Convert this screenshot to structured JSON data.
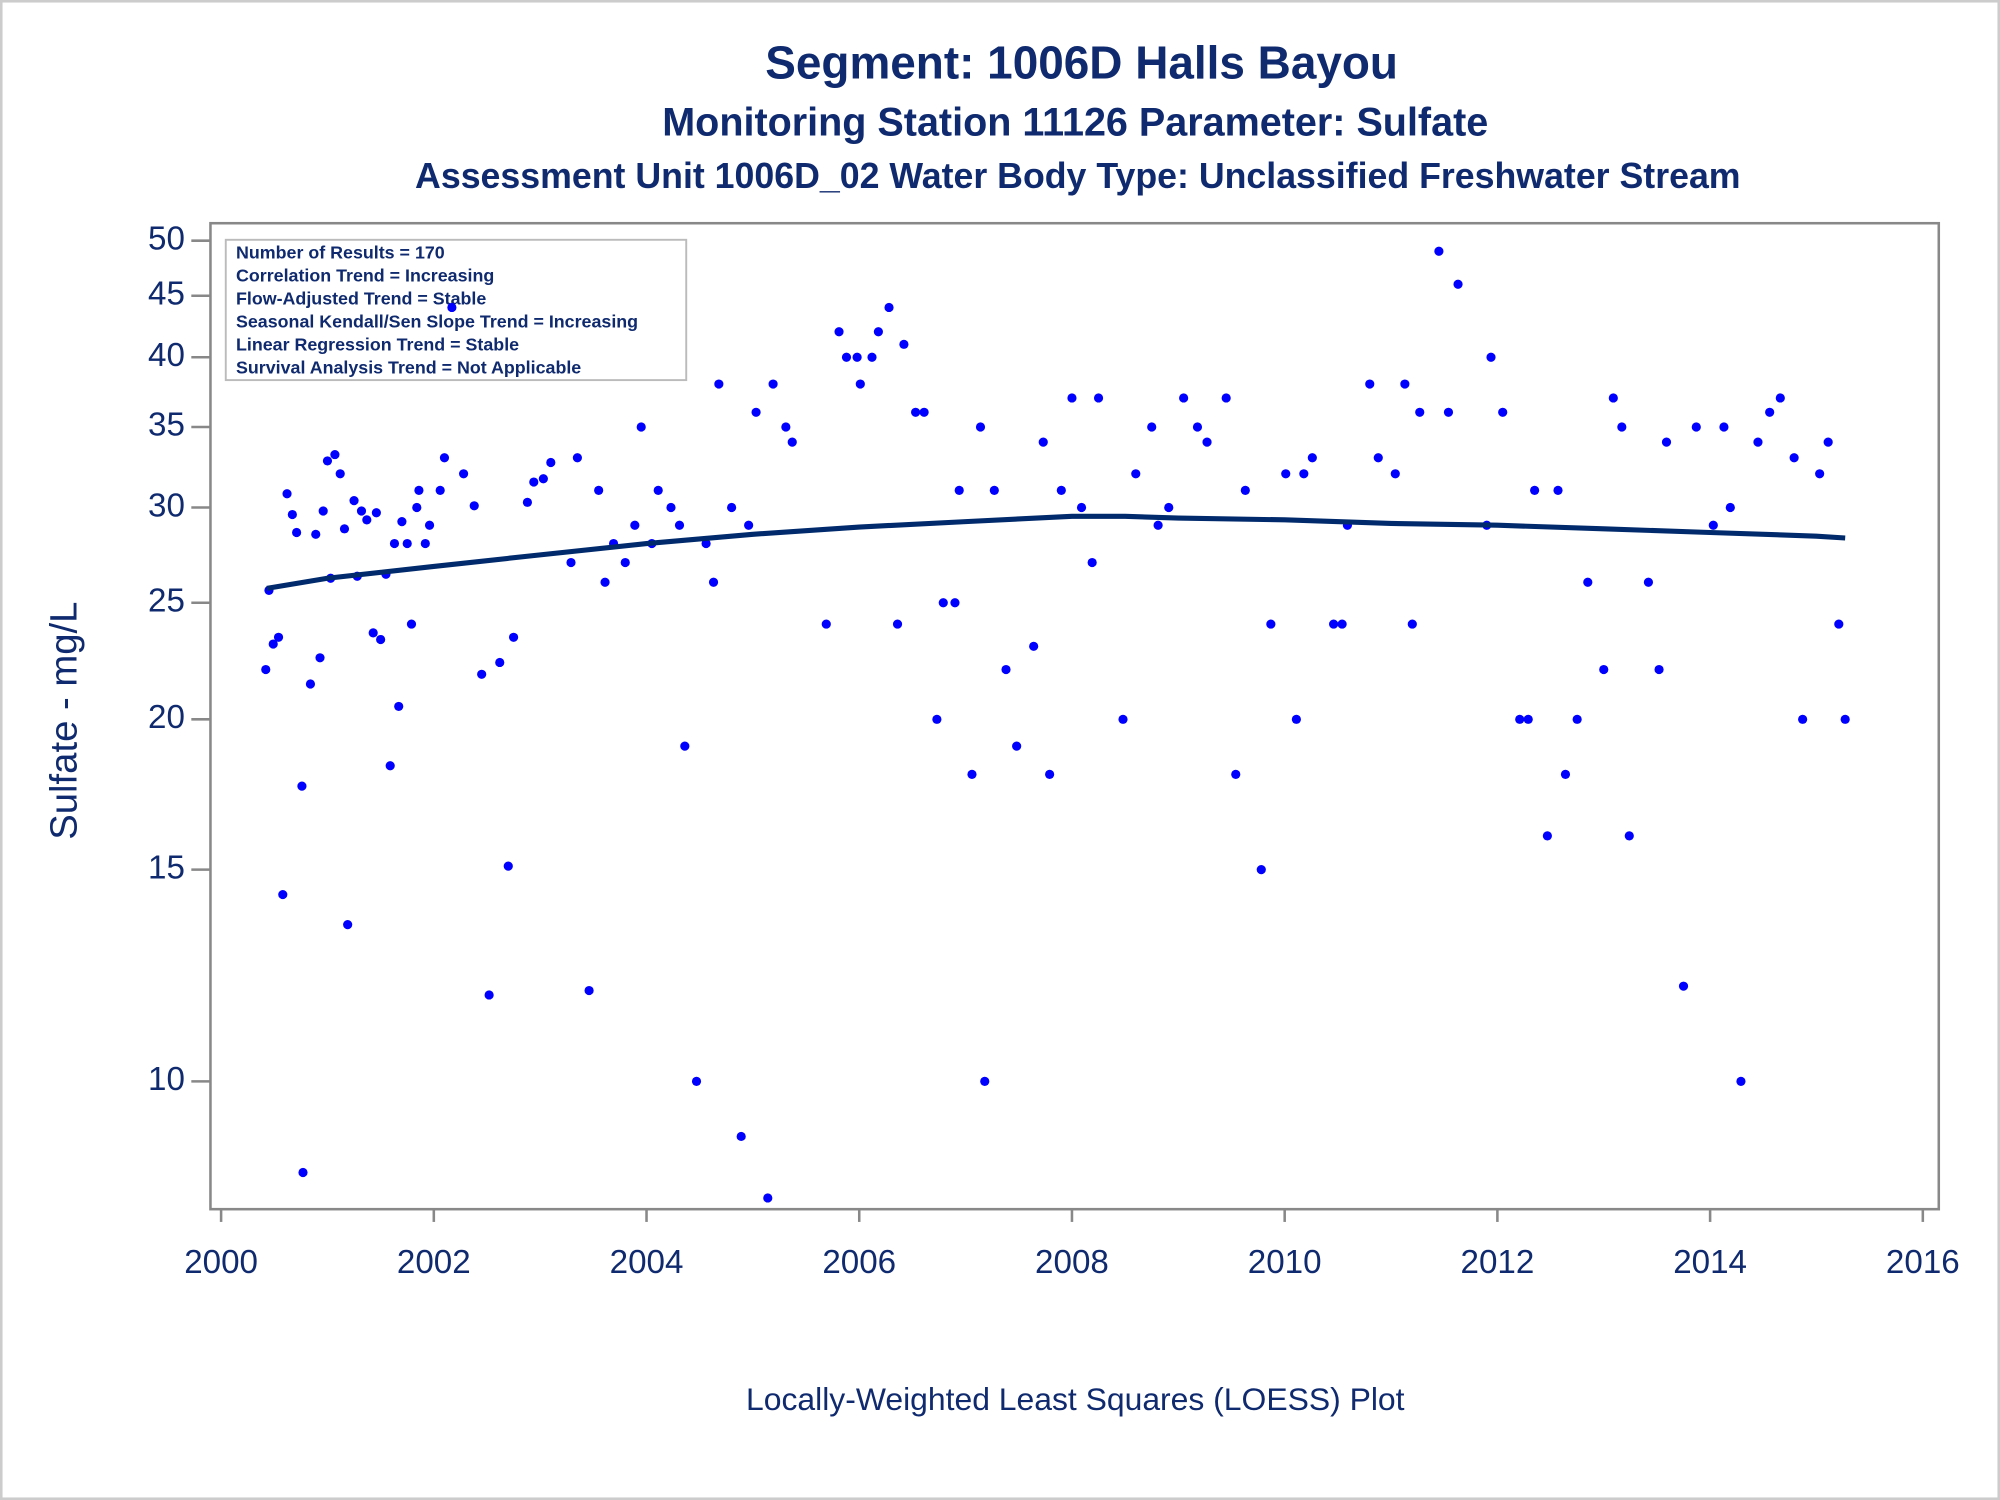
{
  "chart_data": {
    "type": "scatter",
    "title": "Segment: 1006D  Halls Bayou",
    "subtitles": [
      "Monitoring Station 11126 Parameter: Sulfate",
      "Assessment Unit 1006D_02   Water Body Type: Unclassified Freshwater Stream"
    ],
    "ylabel": "Sulfate - mg/L",
    "footnote": "Locally-Weighted Least Squares (LOESS) Plot",
    "annotations": [
      "Number of Results = 170",
      "Correlation Trend = Increasing",
      "Flow-Adjusted Trend = Stable",
      "Seasonal Kendall/Sen Slope Trend = Increasing",
      "Linear Regression Trend = Stable",
      "Survival Analysis Trend = Not Applicable"
    ],
    "xlim": [
      1999.9,
      2016.15
    ],
    "xticks": [
      2000,
      2002,
      2004,
      2006,
      2008,
      2010,
      2012,
      2014,
      2016
    ],
    "ylim": [
      7.83,
      51.7
    ],
    "yticks": [
      10,
      15,
      20,
      25,
      30,
      35,
      40,
      45,
      50
    ],
    "log_y": true,
    "series": [
      {
        "type": "scatter",
        "color": "#0000ff",
        "x": [
          2000.42,
          2000.45,
          2000.49,
          2000.54,
          2000.58,
          2000.62,
          2000.67,
          2000.71,
          2000.76,
          2000.77,
          2000.84,
          2000.89,
          2000.93,
          2000.96,
          2001.0,
          2001.03,
          2001.07,
          2001.12,
          2001.16,
          2001.19,
          2001.25,
          2001.28,
          2001.32,
          2001.37,
          2001.43,
          2001.46,
          2001.5,
          2001.55,
          2001.59,
          2001.63,
          2001.67,
          2001.7,
          2001.75,
          2001.79,
          2001.84,
          2001.86,
          2001.92,
          2001.96,
          2002.06,
          2002.1,
          2002.17,
          2002.28,
          2002.38,
          2002.45,
          2002.52,
          2002.62,
          2002.7,
          2002.75,
          2002.88,
          2002.94,
          2003.03,
          2003.1,
          2003.29,
          2003.35,
          2003.46,
          2003.55,
          2003.61,
          2003.69,
          2003.8,
          2003.89,
          2003.95,
          2004.05,
          2004.11,
          2004.23,
          2004.31,
          2004.36,
          2004.47,
          2004.56,
          2004.63,
          2004.68,
          2004.8,
          2004.89,
          2004.96,
          2005.03,
          2005.14,
          2005.19,
          2005.31,
          2005.37,
          2005.69,
          2005.81,
          2005.88,
          2005.98,
          2006.01,
          2006.12,
          2006.18,
          2006.28,
          2006.36,
          2006.42,
          2006.53,
          2006.61,
          2006.73,
          2006.79,
          2006.9,
          2006.94,
          2007.06,
          2007.14,
          2007.18,
          2007.27,
          2007.38,
          2007.48,
          2007.64,
          2007.73,
          2007.79,
          2007.9,
          2008.0,
          2008.09,
          2008.19,
          2008.25,
          2008.48,
          2008.6,
          2008.75,
          2008.81,
          2008.91,
          2009.05,
          2009.18,
          2009.27,
          2009.45,
          2009.54,
          2009.63,
          2009.78,
          2009.87,
          2010.01,
          2010.11,
          2010.18,
          2010.26,
          2010.46,
          2010.54,
          2010.59,
          2010.8,
          2010.88,
          2011.04,
          2011.13,
          2011.2,
          2011.27,
          2011.45,
          2011.54,
          2011.63,
          2011.9,
          2011.94,
          2012.05,
          2012.21,
          2012.29,
          2012.35,
          2012.47,
          2012.57,
          2012.64,
          2012.75,
          2012.85,
          2013.0,
          2013.09,
          2013.17,
          2013.24,
          2013.42,
          2013.52,
          2013.59,
          2013.75,
          2013.87,
          2014.03,
          2014.13,
          2014.19,
          2014.29,
          2014.45,
          2014.56,
          2014.66,
          2014.79,
          2014.87,
          2015.03,
          2015.11,
          2015.21,
          2015.27
        ],
        "values": [
          22,
          25.6,
          23.1,
          23.4,
          14.3,
          30.8,
          29.6,
          28.6,
          17.6,
          8.4,
          21.4,
          28.5,
          22.5,
          29.8,
          32.8,
          26.2,
          33.2,
          32,
          28.8,
          13.5,
          30.4,
          26.3,
          29.8,
          29.3,
          23.6,
          29.7,
          23.3,
          26.4,
          18.3,
          28,
          20.5,
          29.2,
          28,
          24,
          30,
          31,
          28,
          29,
          31,
          33,
          44,
          32,
          30.1,
          21.8,
          11.8,
          22.3,
          15.1,
          23.4,
          30.3,
          31.5,
          31.7,
          32.7,
          27,
          33,
          11.9,
          31,
          26,
          28,
          27,
          29,
          35,
          28,
          31,
          30,
          29,
          19,
          10,
          28,
          26,
          38,
          30,
          9,
          29,
          36,
          8,
          38,
          35,
          34,
          24,
          42,
          40,
          40,
          38,
          40,
          42,
          44,
          24,
          41,
          36,
          36,
          20,
          25,
          25,
          31,
          18,
          35,
          10,
          31,
          22,
          19,
          23,
          34,
          18,
          31,
          37,
          30,
          27,
          37,
          20,
          32,
          35,
          29,
          30,
          37,
          35,
          34,
          37,
          18,
          31,
          15,
          24,
          32,
          20,
          32,
          33,
          24,
          24,
          29,
          38,
          33,
          32,
          38,
          24,
          36,
          49,
          36,
          46,
          29,
          40,
          36,
          20,
          20,
          31,
          16,
          31,
          18,
          20,
          26,
          22,
          37,
          35,
          16,
          26,
          22,
          34,
          12,
          35,
          29,
          35,
          30,
          10,
          34,
          36,
          37,
          33,
          20,
          32,
          34,
          24,
          20
        ]
      },
      {
        "type": "line",
        "color": "#002a6c",
        "x": [
          2000.43,
          2001,
          2002,
          2003,
          2004,
          2005,
          2006,
          2007,
          2008,
          2008.5,
          2009,
          2010,
          2011,
          2012,
          2013,
          2014,
          2015,
          2015.27
        ],
        "values": [
          25.7,
          26.2,
          26.8,
          27.4,
          28.0,
          28.5,
          28.9,
          29.2,
          29.5,
          29.5,
          29.4,
          29.3,
          29.1,
          29.0,
          28.8,
          28.6,
          28.4,
          28.3
        ]
      }
    ]
  }
}
